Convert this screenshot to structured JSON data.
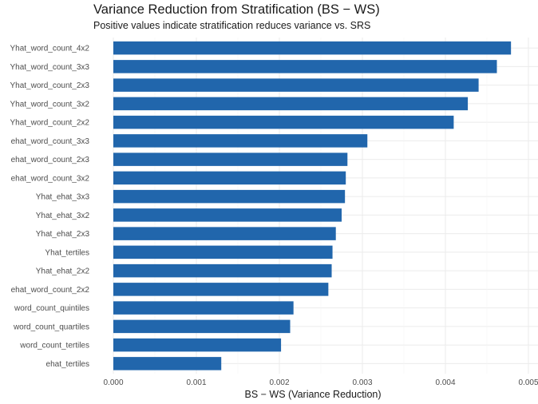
{
  "chart_data": {
    "type": "bar",
    "orientation": "horizontal",
    "title": "Variance Reduction from Stratification (BS − WS)",
    "subtitle": "Positive values indicate stratification reduces variance vs. SRS",
    "xlabel": "BS − WS (Variance Reduction)",
    "ylabel": "",
    "xlim": [
      0,
      0.005
    ],
    "xticks": [
      "0.000",
      "0.001",
      "0.002",
      "0.003",
      "0.004",
      "0.005"
    ],
    "grid": true,
    "bar_color": "#2166ac",
    "categories": [
      "Yhat_word_count_4x2",
      "Yhat_word_count_3x3",
      "Yhat_word_count_2x3",
      "Yhat_word_count_3x2",
      "Yhat_word_count_2x2",
      "ehat_word_count_3x3",
      "ehat_word_count_2x3",
      "ehat_word_count_3x2",
      "Yhat_ehat_3x3",
      "Yhat_ehat_3x2",
      "Yhat_ehat_2x3",
      "Yhat_tertiles",
      "Yhat_ehat_2x2",
      "ehat_word_count_2x2",
      "word_count_quintiles",
      "word_count_quartiles",
      "word_count_tertiles",
      "ehat_tertiles"
    ],
    "values": [
      0.00479,
      0.00462,
      0.0044,
      0.00427,
      0.0041,
      0.00306,
      0.00282,
      0.0028,
      0.00279,
      0.00275,
      0.00268,
      0.00264,
      0.00263,
      0.00259,
      0.00217,
      0.00213,
      0.00202,
      0.0013
    ]
  }
}
